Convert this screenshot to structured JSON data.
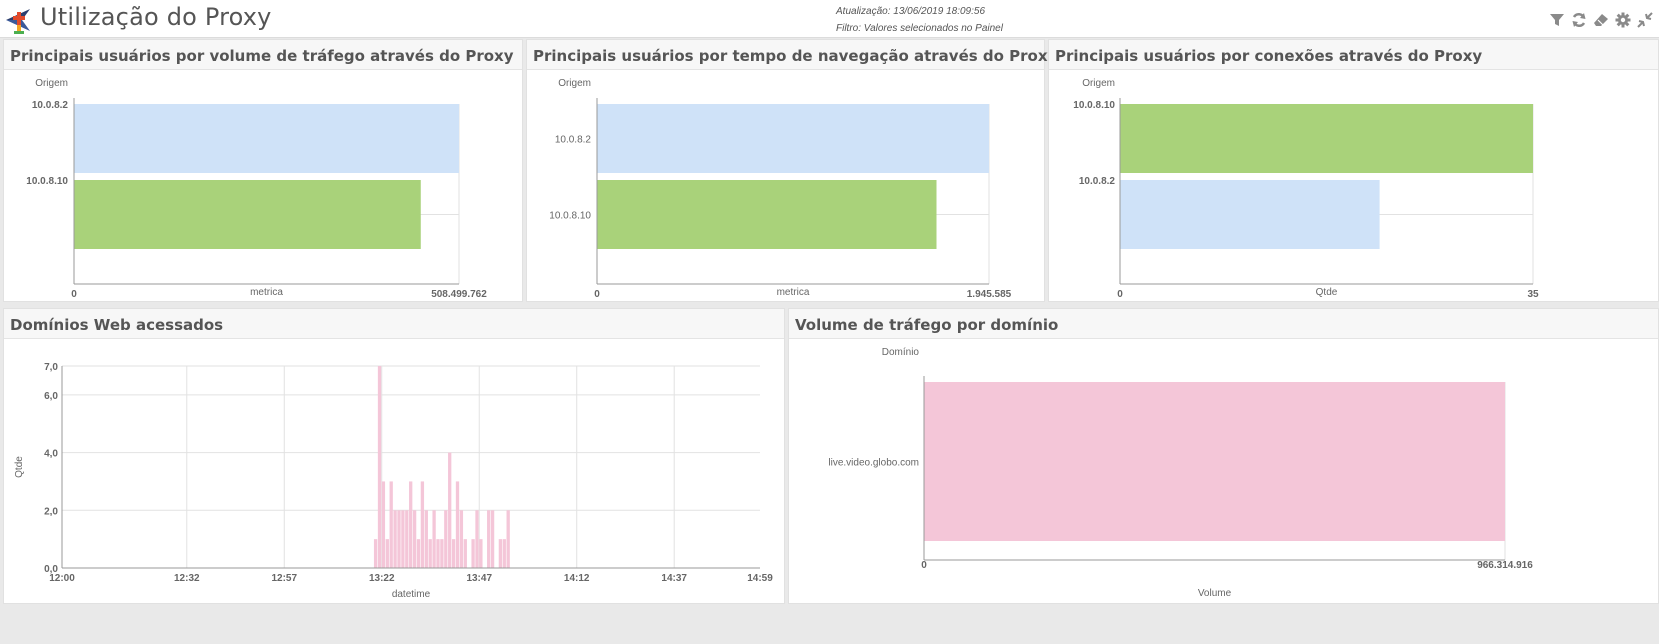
{
  "header": {
    "title": "Utilização do Proxy",
    "update": "Atualização: 13/06/2019 18:09:56",
    "filter": "Filtro: Valores selecionados no Painel"
  },
  "toolbar": {
    "icons": [
      "filter-icon",
      "refresh-icon",
      "eraser-icon",
      "gear-icon",
      "collapse-icon"
    ]
  },
  "colors": {
    "blue": "#cfe2f8",
    "green": "#a9d27a",
    "pink": "#f4c6d8",
    "axis": "#999999",
    "grid": "#e2e2e2"
  },
  "panels": {
    "volume": {
      "title": "Principais usuários por volume de tráfego através do Proxy",
      "chart_data": {
        "type": "bar",
        "orientation": "horizontal",
        "categories": [
          "10.0.8.2",
          "10.0.8.10"
        ],
        "values": [
          508499762,
          458000000
        ],
        "bar_colors": [
          "#cfe2f8",
          "#a9d27a"
        ],
        "xlim": [
          0,
          508499762
        ],
        "tick_labels": [
          "0",
          "508.499.762"
        ],
        "xlabel": "metrica",
        "ylabel": "Origem"
      }
    },
    "time": {
      "title": "Principais usuários por tempo de navegação através do Proxy",
      "chart_data": {
        "type": "bar",
        "orientation": "horizontal",
        "categories": [
          "10.0.8.2",
          "10.0.8.10"
        ],
        "values": [
          1945585,
          1685000
        ],
        "bar_colors": [
          "#cfe2f8",
          "#a9d27a"
        ],
        "xlim": [
          0,
          1945585
        ],
        "tick_labels": [
          "0",
          "1.945.585"
        ],
        "xlabel": "metrica",
        "ylabel": "Origem"
      }
    },
    "connections": {
      "title": "Principais usuários por conexões através do Proxy",
      "chart_data": {
        "type": "bar",
        "orientation": "horizontal",
        "categories": [
          "10.0.8.10",
          "10.0.8.2"
        ],
        "values": [
          35,
          22
        ],
        "bar_colors": [
          "#a9d27a",
          "#cfe2f8"
        ],
        "xlim": [
          0,
          35
        ],
        "tick_labels": [
          "0",
          "35"
        ],
        "xlabel": "Qtde",
        "ylabel": "Origem"
      }
    },
    "domains": {
      "title": "Domínios Web acessados",
      "chart_data": {
        "type": "bar",
        "x_ticks": [
          "12:00",
          "12:32",
          "12:57",
          "13:22",
          "13:47",
          "14:12",
          "14:37",
          "14:59"
        ],
        "y_ticks": [
          "0,0",
          "2,0",
          "4,0",
          "6,0",
          "7,0"
        ],
        "ylim": [
          0,
          7
        ],
        "xlim_minutes": [
          0,
          179
        ],
        "x_minutes": [
          80,
          81,
          82,
          83,
          84,
          85,
          86,
          87,
          88,
          89,
          90,
          91,
          92,
          93,
          94,
          95,
          96,
          97,
          98,
          99,
          100,
          101,
          102,
          103,
          105,
          106,
          107,
          109,
          110,
          112,
          113,
          114
        ],
        "values": [
          1,
          7,
          3,
          1,
          3,
          2,
          2,
          2,
          2,
          3,
          2,
          1,
          3,
          2,
          1,
          2,
          1,
          1,
          2,
          4,
          1,
          3,
          2,
          1,
          1,
          2,
          1,
          2,
          2,
          1,
          1,
          2
        ],
        "xlabel": "datetime",
        "ylabel": "Qtde"
      }
    },
    "traffic": {
      "title": "Volume de tráfego por domínio",
      "chart_data": {
        "type": "bar",
        "orientation": "horizontal",
        "categories": [
          "live.video.globo.com"
        ],
        "values": [
          966314916
        ],
        "bar_colors": [
          "#f4c6d8"
        ],
        "xlim": [
          0,
          966314916
        ],
        "tick_labels": [
          "0",
          "966.314.916"
        ],
        "xlabel": "Volume",
        "ylabel": "Domínio"
      }
    }
  }
}
